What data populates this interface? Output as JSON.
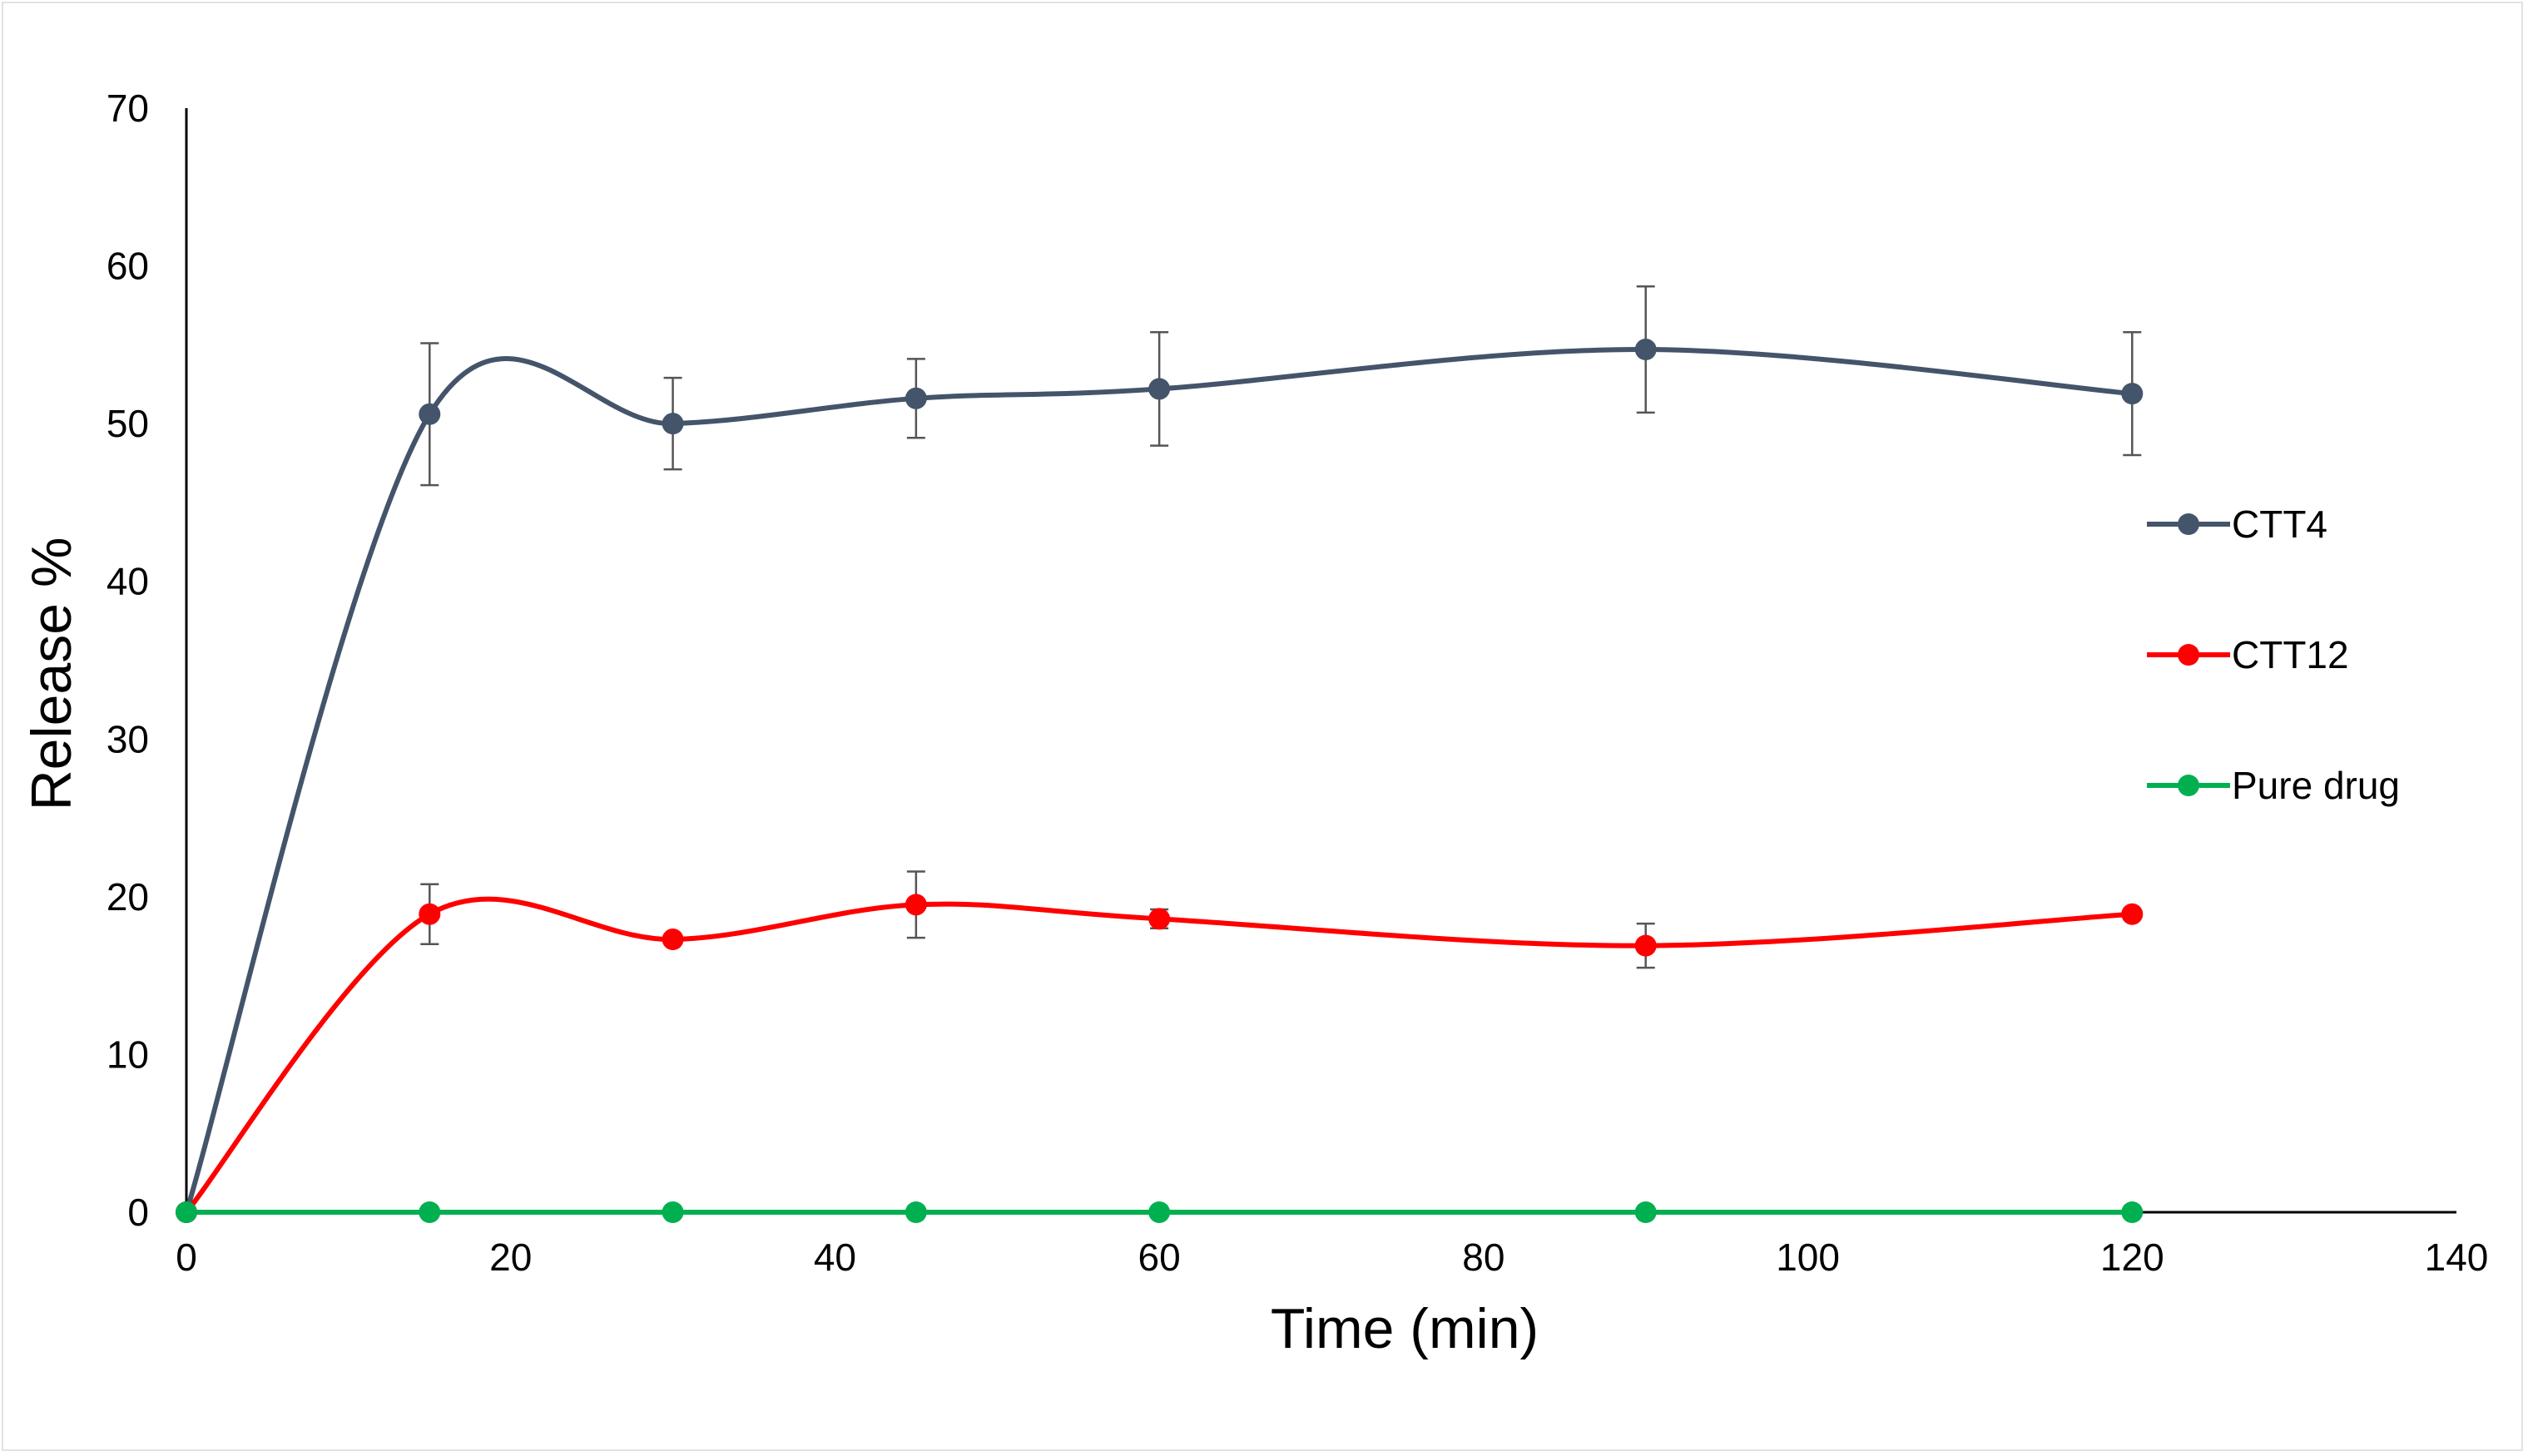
{
  "chart_data": {
    "type": "line",
    "title": "",
    "xlabel": "Time  (min)",
    "ylabel": "Release %",
    "xlim": [
      0,
      140
    ],
    "ylim": [
      0,
      70
    ],
    "xticks": [
      0,
      20,
      40,
      60,
      80,
      100,
      120,
      140
    ],
    "yticks": [
      0,
      10,
      20,
      30,
      40,
      50,
      60,
      70
    ],
    "grid": false,
    "smooth": true,
    "legend_position": "right",
    "x": [
      0,
      15,
      30,
      45,
      60,
      90,
      120
    ],
    "series": [
      {
        "name": "CTT4",
        "color": "#44546a",
        "values": [
          0,
          50.6,
          50.0,
          51.6,
          52.2,
          54.7,
          51.9
        ],
        "errors": [
          0,
          4.5,
          2.9,
          2.5,
          3.6,
          4.0,
          3.9
        ]
      },
      {
        "name": "CTT12",
        "color": "#ff0000",
        "values": [
          0,
          18.9,
          17.3,
          19.5,
          18.6,
          16.9,
          18.9
        ],
        "errors": [
          0,
          1.9,
          0,
          2.1,
          0.6,
          1.4,
          0
        ]
      },
      {
        "name": "Pure drug",
        "color": "#00b050",
        "values": [
          0,
          0,
          0,
          0,
          0,
          0,
          0
        ],
        "errors": [
          0,
          0,
          0,
          0,
          0,
          0,
          0
        ]
      }
    ]
  }
}
